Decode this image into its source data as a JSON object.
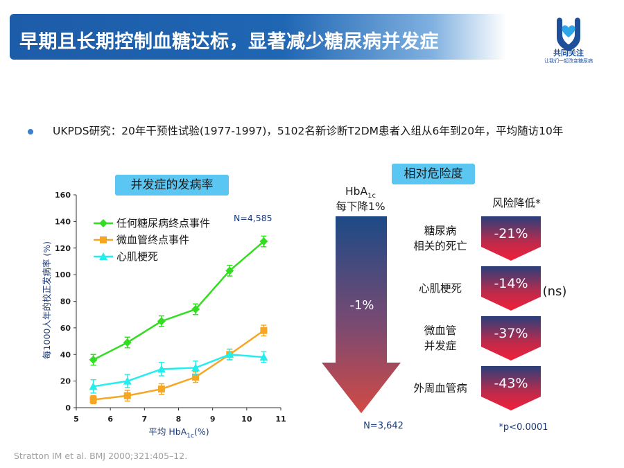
{
  "header": {
    "title": "早期且长期控制血糖达标，显著减少糖尿病并发症",
    "logo_name": "共同关注",
    "logo_slogan": "让我们一起改变糖尿病"
  },
  "bullet": {
    "text": "UKPDS研究：20年干预性试验(1977-1997)，5102名新诊断T2DM患者入组从6年到20年，平均随访10年"
  },
  "chart_section": {
    "tag": "并发症的发病率"
  },
  "chart_data": {
    "type": "line",
    "xlabel": "平均 HbA1c (%)",
    "xlabel_parts": {
      "main": "平均 HbA",
      "sub": "1c",
      "unit": "(%)"
    },
    "ylabel": "每1000人年的校正发病率 (%)",
    "xlim": [
      5,
      11
    ],
    "ylim": [
      0,
      160
    ],
    "x_ticks": [
      "5",
      "6",
      "7",
      "8",
      "9",
      "10",
      "11"
    ],
    "y_ticks": [
      "0",
      "20",
      "40",
      "60",
      "80",
      "100",
      "120",
      "140",
      "160"
    ],
    "annotation": "N=4,585",
    "legend_position": "top-left",
    "x": [
      5.5,
      6.5,
      7.5,
      8.5,
      9.5,
      10.5
    ],
    "series": [
      {
        "name": "任何糖尿病终点事件",
        "color": "#33dd22",
        "marker": "diamond",
        "values": [
          36,
          49,
          65,
          74,
          103,
          125
        ],
        "err": [
          4,
          4,
          4,
          4,
          4,
          4
        ]
      },
      {
        "name": "微血管终点事件",
        "color": "#f5a623",
        "marker": "square",
        "values": [
          6,
          9,
          14,
          23,
          40,
          58
        ],
        "err": [
          3,
          4,
          4,
          4,
          4,
          4
        ]
      },
      {
        "name": "心肌梗死",
        "color": "#22eeee",
        "marker": "triangle",
        "values": [
          16,
          20,
          29,
          30,
          40,
          38
        ],
        "err": [
          5,
          5,
          5,
          5,
          4,
          4
        ]
      }
    ]
  },
  "risk": {
    "tag": "相对危险度",
    "hba1c_label_main": "HbA",
    "hba1c_label_sub": "1c",
    "hba1c_label_line2": "每下降1%",
    "arrow_value": "-1%",
    "n_label": "N=3,642",
    "reduction_header": "风险降低*",
    "footnote": "*p<0.0001",
    "ns_label": "(ns)",
    "items": [
      {
        "label_line1": "糖尿病",
        "label_line2": "相关的死亡",
        "value": "-21%"
      },
      {
        "label_line1": "心肌梗死",
        "label_line2": "",
        "value": "-14%"
      },
      {
        "label_line1": "微血管",
        "label_line2": "并发症",
        "value": "-37%"
      },
      {
        "label_line1": "外周血管病",
        "label_line2": "",
        "value": "-43%"
      }
    ]
  },
  "reference": "Stratton IM et al. BMJ 2000;321:405–12."
}
